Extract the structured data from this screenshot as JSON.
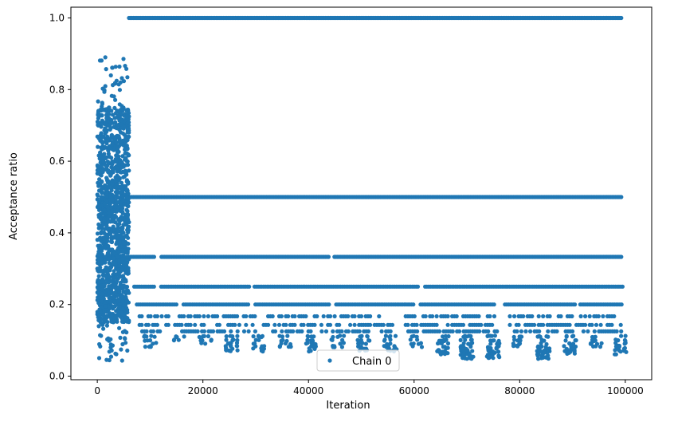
{
  "chart_data": {
    "type": "scatter",
    "title": "",
    "xlabel": "Iteration",
    "ylabel": "Acceptance ratio",
    "xlim": [
      -5000,
      105000
    ],
    "ylim": [
      -0.01,
      1.03
    ],
    "xticks": [
      0,
      20000,
      40000,
      60000,
      80000,
      100000
    ],
    "xtick_labels": [
      "0",
      "20000",
      "40000",
      "60000",
      "80000",
      "100000"
    ],
    "yticks": [
      0.0,
      0.2,
      0.4,
      0.6,
      0.8,
      1.0
    ],
    "ytick_labels": [
      "0.0",
      "0.2",
      "0.4",
      "0.6",
      "0.8",
      "1.0"
    ],
    "grid": false,
    "legend_position": "bottom-center",
    "marker_color": "#1f77b4",
    "series": [
      {
        "name": "Chain 0",
        "burn_in_cloud": {
          "x_range": [
            0,
            6000
          ],
          "y_range": [
            0.04,
            0.89
          ]
        },
        "levels": [
          {
            "y": 1.0,
            "x_range": [
              6000,
              99500
            ],
            "gaps": []
          },
          {
            "y": 0.5,
            "x_range": [
              6000,
              99500
            ],
            "gaps": []
          },
          {
            "y": 0.333,
            "x_range": [
              6000,
              99500
            ],
            "gaps": [
              [
                11000,
                12000
              ],
              [
                44000,
                44800
              ]
            ]
          },
          {
            "y": 0.25,
            "x_range": [
              7000,
              99500
            ],
            "gaps": [
              [
                11000,
                11800
              ],
              [
                28800,
                29500
              ],
              [
                61000,
                61800
              ]
            ]
          },
          {
            "y": 0.2,
            "x_range": [
              7500,
              99500
            ],
            "gaps": [
              [
                15000,
                16000
              ],
              [
                28800,
                29600
              ],
              [
                44000,
                45000
              ],
              [
                60000,
                61000
              ],
              [
                75500,
                77000
              ],
              [
                90500,
                91200
              ]
            ]
          },
          {
            "y": 0.167,
            "x_range": [
              8000,
              99500
            ],
            "gaps": [
              [
                14000,
                15200
              ],
              [
                30000,
                31500
              ],
              [
                55000,
                57000
              ],
              [
                76000,
                77500
              ],
              [
                90000,
                91500
              ]
            ]
          },
          {
            "y": 0.143,
            "x_range": [
              8000,
              99500
            ],
            "gaps": [
              [
                11500,
                12500
              ],
              [
                20500,
                22000
              ],
              [
                30000,
                31500
              ],
              [
                46000,
                47500
              ],
              [
                56000,
                58000
              ],
              [
                75000,
                77500
              ]
            ]
          },
          {
            "y": 0.125,
            "x_range": [
              8500,
              99500
            ],
            "gaps": [
              [
                12000,
                15500
              ],
              [
                30000,
                33000
              ],
              [
                40500,
                42500
              ],
              [
                56000,
                58500
              ],
              [
                76000,
                79000
              ],
              [
                90000,
                92000
              ]
            ]
          }
        ],
        "low_tail_clusters": [
          {
            "x_center": 10000,
            "y_min": 0.08
          },
          {
            "x_center": 15500,
            "y_min": 0.1
          },
          {
            "x_center": 20500,
            "y_min": 0.09
          },
          {
            "x_center": 25500,
            "y_min": 0.07
          },
          {
            "x_center": 30500,
            "y_min": 0.07
          },
          {
            "x_center": 35500,
            "y_min": 0.08
          },
          {
            "x_center": 40500,
            "y_min": 0.07
          },
          {
            "x_center": 45500,
            "y_min": 0.08
          },
          {
            "x_center": 50500,
            "y_min": 0.07
          },
          {
            "x_center": 55500,
            "y_min": 0.07
          },
          {
            "x_center": 60500,
            "y_min": 0.08
          },
          {
            "x_center": 65500,
            "y_min": 0.06
          },
          {
            "x_center": 70000,
            "y_min": 0.05
          },
          {
            "x_center": 75000,
            "y_min": 0.05
          },
          {
            "x_center": 80000,
            "y_min": 0.08
          },
          {
            "x_center": 84500,
            "y_min": 0.05
          },
          {
            "x_center": 89500,
            "y_min": 0.06
          },
          {
            "x_center": 94500,
            "y_min": 0.08
          },
          {
            "x_center": 99000,
            "y_min": 0.06
          }
        ]
      }
    ]
  }
}
